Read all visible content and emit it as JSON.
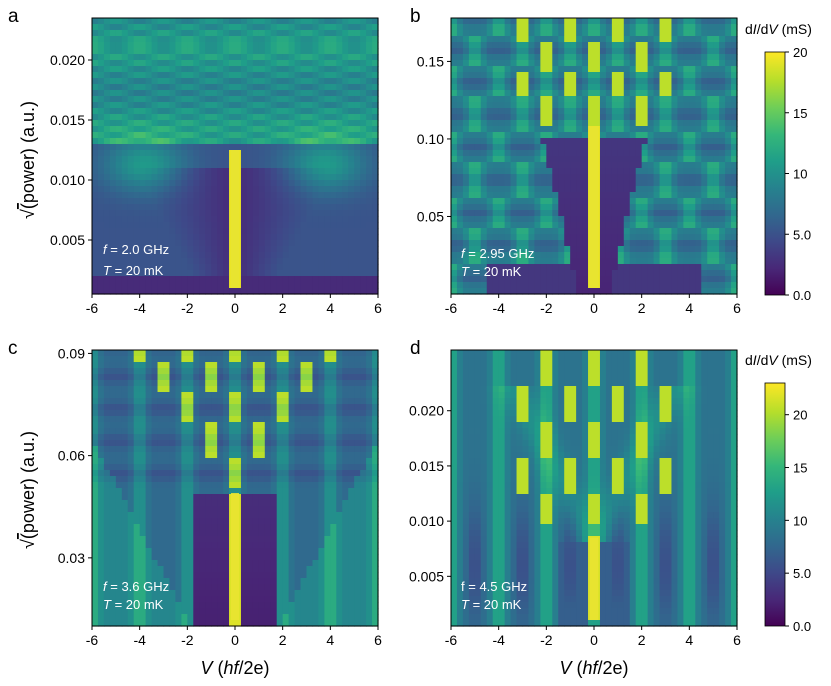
{
  "figure": {
    "colorbar_label": {
      "prefix": "d",
      "I": "I",
      "slash": "/d",
      "V": "V",
      "unit": " (mS)"
    },
    "xlabel": {
      "V": "V",
      "open": " (",
      "hf": "hf",
      "tail": "/2e)"
    },
    "ylabel": {
      "power": "power",
      "unit": "(a.u.)"
    }
  },
  "chart_data": [
    {
      "panel": "a",
      "type": "heatmap",
      "x": {
        "min": -6,
        "max": 6,
        "ticks": [
          -6,
          -4,
          -2,
          0,
          2,
          4,
          6
        ],
        "tick_labels": [
          "-6",
          "-4",
          "-2",
          "0",
          "2",
          "4",
          "6"
        ]
      },
      "y": {
        "min": 0.0005,
        "max": 0.0235,
        "ticks": [
          0.005,
          0.01,
          0.015,
          0.02
        ],
        "tick_labels": [
          "0.005",
          "0.010",
          "0.015",
          "0.020"
        ]
      },
      "annotation": {
        "f_var": "f",
        "f_text": " = 2.0 GHz",
        "T_var": "T",
        "T_text": " = 20 mK"
      },
      "features": {
        "zero_peak_top": 0.0125,
        "plateau_top": 0.0018,
        "n_levels": 10,
        "bright_band": 0.0115
      }
    },
    {
      "panel": "b",
      "type": "heatmap",
      "x": {
        "min": -6,
        "max": 6,
        "ticks": [
          -6,
          -4,
          -2,
          0,
          2,
          4,
          6
        ],
        "tick_labels": [
          "-6",
          "-4",
          "-2",
          "0",
          "2",
          "4",
          "6"
        ]
      },
      "y": {
        "min": 0.0,
        "max": 0.178,
        "ticks": [
          0.05,
          0.1,
          0.15
        ],
        "tick_labels": [
          "0.05",
          "0.10",
          "0.15"
        ]
      },
      "annotation": {
        "f_var": "f",
        "f_text": " = 2.95 GHz",
        "T_var": "T",
        "T_text": " = 20 mK"
      },
      "colorbar": {
        "min": 0,
        "max": 20,
        "ticks": [
          0,
          5,
          10,
          15,
          20
        ],
        "tick_labels": [
          "0.0",
          "5.0",
          "10",
          "15",
          "20"
        ]
      },
      "features": {
        "zero_peak_top": 0.108,
        "plateau_top": 0.1,
        "n_levels": 6
      }
    },
    {
      "panel": "c",
      "type": "heatmap",
      "x": {
        "min": -6,
        "max": 6,
        "ticks": [
          -6,
          -4,
          -2,
          0,
          2,
          4,
          6
        ],
        "tick_labels": [
          "-6",
          "-4",
          "-2",
          "0",
          "2",
          "4",
          "6"
        ]
      },
      "y": {
        "min": 0.01,
        "max": 0.091,
        "ticks": [
          0.03,
          0.06,
          0.09
        ],
        "tick_labels": [
          "0.03",
          "0.06",
          "0.09"
        ]
      },
      "annotation": {
        "f_var": "f",
        "f_text": " = 3.6 GHz",
        "T_var": "T",
        "T_text": " = 20 mK"
      },
      "features": {
        "zero_peak_top": 0.049,
        "plateau_top": 0.049,
        "n_levels": 6
      }
    },
    {
      "panel": "d",
      "type": "heatmap",
      "x": {
        "min": -6,
        "max": 6,
        "ticks": [
          -6,
          -4,
          -2,
          0,
          2,
          4,
          6
        ],
        "tick_labels": [
          "-6",
          "-4",
          "-2",
          "0",
          "2",
          "4",
          "6"
        ]
      },
      "y": {
        "min": 0.0005,
        "max": 0.0255,
        "ticks": [
          0.005,
          0.01,
          0.015,
          0.02
        ],
        "tick_labels": [
          "0.005",
          "0.010",
          "0.015",
          "0.020"
        ]
      },
      "annotation": {
        "f_var": "f",
        "f_text": " = 4.5 GHz",
        "T_var": "T",
        "T_text": " = 20 mK",
        "f_upright": true
      },
      "colorbar": {
        "min": 0,
        "max": 23,
        "ticks": [
          0,
          5,
          10,
          15,
          20
        ],
        "tick_labels": [
          "0.0",
          "5.0",
          "10",
          "15",
          "20"
        ]
      },
      "features": {
        "zero_peak_top": 0.0085,
        "plateau_top": 0.008,
        "n_levels": 6
      }
    }
  ],
  "panel_letters": [
    "a",
    "b",
    "c",
    "d"
  ],
  "colormap": [
    "#440154",
    "#482878",
    "#3e4989",
    "#31688e",
    "#26828e",
    "#1f9e89",
    "#35b779",
    "#6ece58",
    "#b5de2b",
    "#fde725"
  ]
}
